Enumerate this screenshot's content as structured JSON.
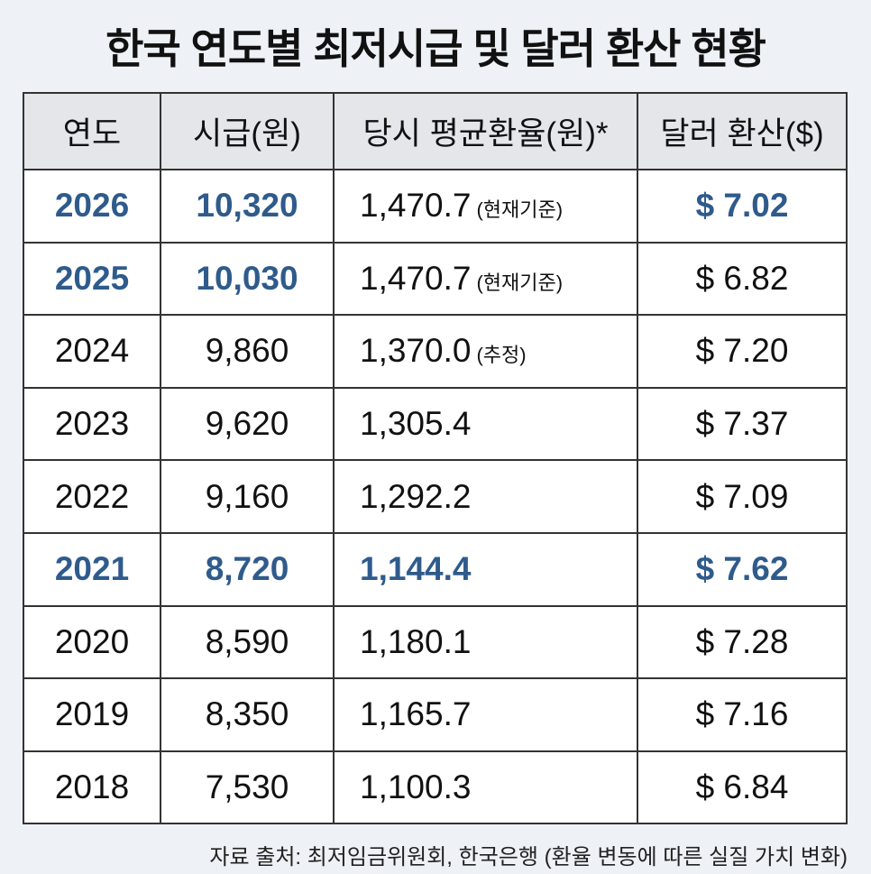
{
  "title": "한국 연도별 최저시급 및 달러 환산 현황",
  "columns": [
    "연도",
    "시급(원)",
    "당시 평균환율(원)*",
    "달러 환산($)"
  ],
  "highlight_color": "#2f5b8c",
  "rows": [
    {
      "year": "2026",
      "wage": "10,320",
      "rate": "1,470.7",
      "note": "(현재기준)",
      "usd": "$ 7.02",
      "hl": [
        true,
        true,
        false,
        true
      ]
    },
    {
      "year": "2025",
      "wage": "10,030",
      "rate": "1,470.7",
      "note": "(현재기준)",
      "usd": "$ 6.82",
      "hl": [
        true,
        true,
        false,
        false
      ]
    },
    {
      "year": "2024",
      "wage": "9,860",
      "rate": "1,370.0",
      "note": "(추정)",
      "usd": "$ 7.20",
      "hl": [
        false,
        false,
        false,
        false
      ]
    },
    {
      "year": "2023",
      "wage": "9,620",
      "rate": "1,305.4",
      "note": "",
      "usd": "$ 7.37",
      "hl": [
        false,
        false,
        false,
        false
      ]
    },
    {
      "year": "2022",
      "wage": "9,160",
      "rate": "1,292.2",
      "note": "",
      "usd": "$ 7.09",
      "hl": [
        false,
        false,
        false,
        false
      ]
    },
    {
      "year": "2021",
      "wage": "8,720",
      "rate": "1,144.4",
      "note": "",
      "usd": "$ 7.62",
      "hl": [
        true,
        true,
        true,
        true
      ]
    },
    {
      "year": "2020",
      "wage": "8,590",
      "rate": "1,180.1",
      "note": "",
      "usd": "$ 7.28",
      "hl": [
        false,
        false,
        false,
        false
      ]
    },
    {
      "year": "2019",
      "wage": "8,350",
      "rate": "1,165.7",
      "note": "",
      "usd": "$ 7.16",
      "hl": [
        false,
        false,
        false,
        false
      ]
    },
    {
      "year": "2018",
      "wage": "7,530",
      "rate": "1,100.3",
      "note": "",
      "usd": "$ 6.84",
      "hl": [
        false,
        false,
        false,
        false
      ]
    }
  ],
  "footer": "자료 출처: 최저임금위원회, 한국은행 (환율 변동에 따른 실질 가치 변화)"
}
